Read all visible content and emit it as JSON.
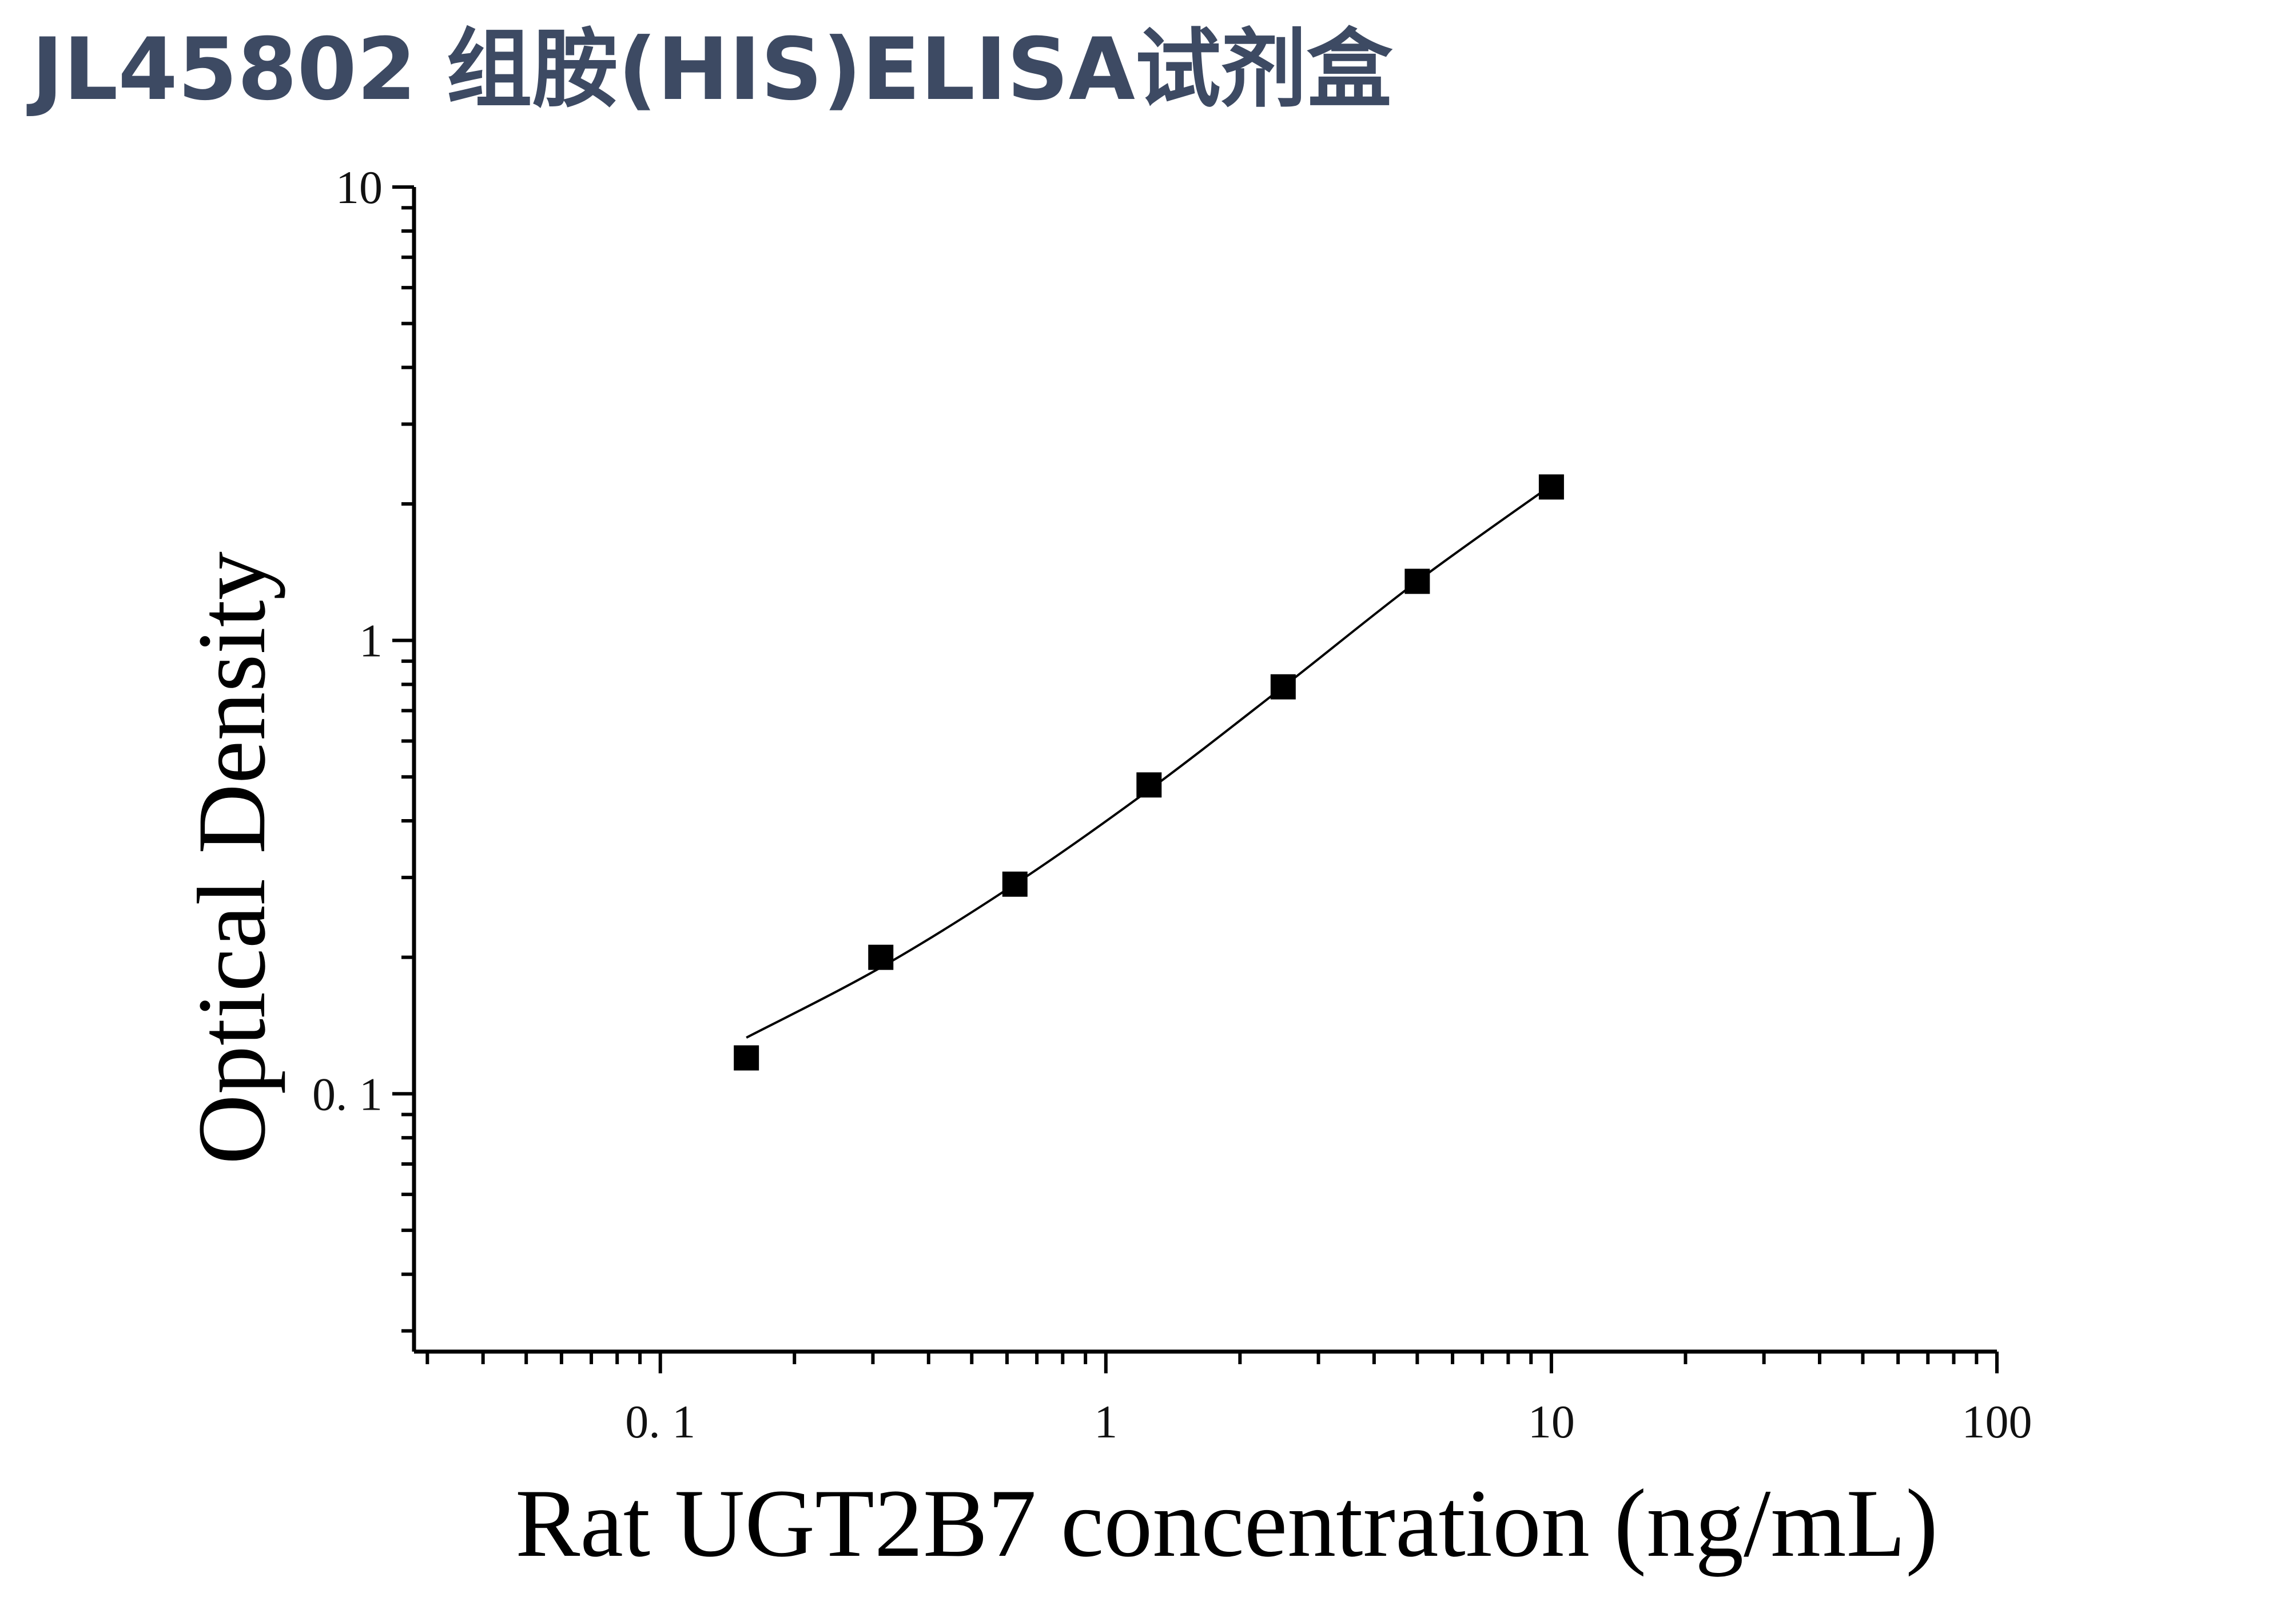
{
  "header": {
    "title": "JL45802 组胺(HIS)ELISA试剂盒"
  },
  "chart_data": {
    "type": "scatter",
    "xlabel": "Rat UGT2B7 concentration (ng/mL)",
    "ylabel": "Optical Density",
    "x_scale": "log",
    "y_scale": "log",
    "xlim": [
      0.028,
      100
    ],
    "ylim": [
      0.027,
      10
    ],
    "x_ticks": [
      {
        "value": 0.1,
        "label": "0. 1"
      },
      {
        "value": 1,
        "label": "1"
      },
      {
        "value": 10,
        "label": "10"
      },
      {
        "value": 100,
        "label": "100"
      }
    ],
    "y_ticks": [
      {
        "value": 0.1,
        "label": "0. 1"
      },
      {
        "value": 1,
        "label": "1"
      },
      {
        "value": 10,
        "label": "10"
      }
    ],
    "grid": false,
    "series": [
      {
        "marker": "square",
        "color": "#000000",
        "points": [
          {
            "x": 0.156,
            "y": 0.12
          },
          {
            "x": 0.3125,
            "y": 0.2
          },
          {
            "x": 0.625,
            "y": 0.29
          },
          {
            "x": 1.25,
            "y": 0.48
          },
          {
            "x": 2.5,
            "y": 0.79
          },
          {
            "x": 5,
            "y": 1.35
          },
          {
            "x": 10,
            "y": 2.18
          }
        ]
      }
    ],
    "fit_curve": {
      "color": "#000000",
      "points": [
        {
          "x": 0.156,
          "y": 0.133
        },
        {
          "x": 0.3125,
          "y": 0.19
        },
        {
          "x": 0.625,
          "y": 0.29
        },
        {
          "x": 1.25,
          "y": 0.468
        },
        {
          "x": 2.5,
          "y": 0.79
        },
        {
          "x": 5,
          "y": 1.35
        },
        {
          "x": 10,
          "y": 2.2
        }
      ]
    }
  }
}
